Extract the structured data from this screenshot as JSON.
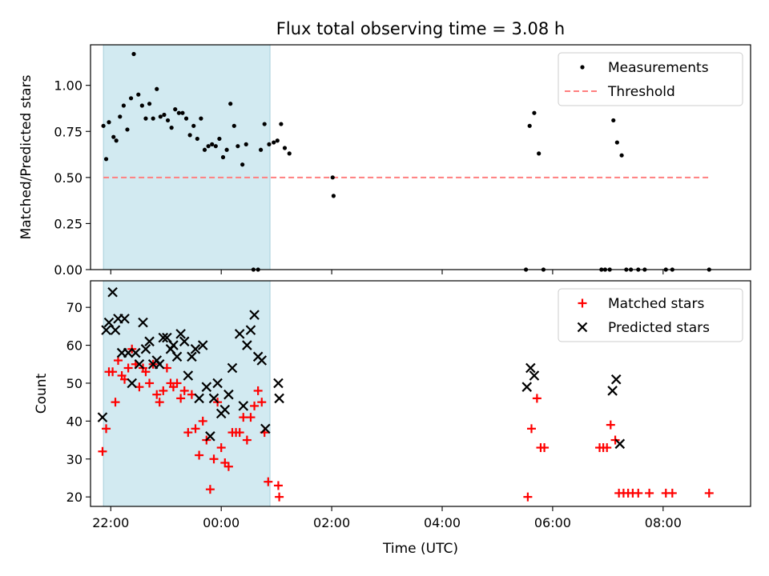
{
  "title": "Flux total observing time = 3.08 h",
  "colors": {
    "shade": "#add8e6",
    "measurement": "#000000",
    "threshold": "#ff7f7f",
    "matched": "#ff0000",
    "predicted": "#000000"
  },
  "chart_data": [
    {
      "type": "scatter",
      "panel": "top",
      "ylabel": "Matched/Predicted stars",
      "ylim": [
        0,
        1.22
      ],
      "yticks": [
        "0.00",
        "0.25",
        "0.50",
        "0.75",
        "1.00"
      ],
      "xlim": [
        "21:38",
        "09:35"
      ],
      "shaded_span": [
        "21:52",
        "00:53"
      ],
      "legend": {
        "position": "top-right",
        "entries": [
          "Measurements",
          "Threshold"
        ]
      },
      "series": [
        {
          "name": "Measurements",
          "marker": "dot",
          "points": [
            [
              "21:52",
              0.78
            ],
            [
              "21:55",
              0.6
            ],
            [
              "21:58",
              0.8
            ],
            [
              "22:03",
              0.72
            ],
            [
              "22:06",
              0.7
            ],
            [
              "22:10",
              0.83
            ],
            [
              "22:14",
              0.89
            ],
            [
              "22:18",
              0.76
            ],
            [
              "22:22",
              0.93
            ],
            [
              "22:25",
              1.17
            ],
            [
              "22:30",
              0.95
            ],
            [
              "22:34",
              0.89
            ],
            [
              "22:38",
              0.82
            ],
            [
              "22:42",
              0.9
            ],
            [
              "22:46",
              0.82
            ],
            [
              "22:50",
              0.98
            ],
            [
              "22:54",
              0.83
            ],
            [
              "22:58",
              0.84
            ],
            [
              "23:02",
              0.81
            ],
            [
              "23:06",
              0.77
            ],
            [
              "23:10",
              0.87
            ],
            [
              "23:14",
              0.85
            ],
            [
              "23:18",
              0.85
            ],
            [
              "23:22",
              0.82
            ],
            [
              "23:26",
              0.73
            ],
            [
              "23:30",
              0.78
            ],
            [
              "23:34",
              0.71
            ],
            [
              "23:38",
              0.82
            ],
            [
              "23:42",
              0.65
            ],
            [
              "23:46",
              0.67
            ],
            [
              "23:50",
              0.68
            ],
            [
              "23:54",
              0.67
            ],
            [
              "23:58",
              0.71
            ],
            [
              "00:02",
              0.61
            ],
            [
              "00:06",
              0.65
            ],
            [
              "00:10",
              0.9
            ],
            [
              "00:14",
              0.78
            ],
            [
              "00:18",
              0.67
            ],
            [
              "00:23",
              0.57
            ],
            [
              "00:27",
              0.68
            ],
            [
              "00:35",
              0.0
            ],
            [
              "00:40",
              0.0
            ],
            [
              "00:43",
              0.65
            ],
            [
              "00:47",
              0.79
            ],
            [
              "00:52",
              0.68
            ],
            [
              "00:57",
              0.69
            ],
            [
              "01:01",
              0.7
            ],
            [
              "01:05",
              0.79
            ],
            [
              "01:09",
              0.66
            ],
            [
              "01:14",
              0.63
            ],
            [
              "02:01",
              0.5
            ],
            [
              "02:02",
              0.4
            ],
            [
              "05:31",
              0.0
            ],
            [
              "05:35",
              0.78
            ],
            [
              "05:40",
              0.85
            ],
            [
              "05:45",
              0.63
            ],
            [
              "05:50",
              0.0
            ],
            [
              "06:53",
              0.0
            ],
            [
              "06:57",
              0.0
            ],
            [
              "07:02",
              0.0
            ],
            [
              "07:06",
              0.81
            ],
            [
              "07:10",
              0.69
            ],
            [
              "07:15",
              0.62
            ],
            [
              "07:20",
              0.0
            ],
            [
              "07:25",
              0.0
            ],
            [
              "07:33",
              0.0
            ],
            [
              "07:40",
              0.0
            ],
            [
              "08:03",
              0.0
            ],
            [
              "08:10",
              0.0
            ],
            [
              "08:50",
              0.0
            ]
          ]
        },
        {
          "name": "Threshold",
          "marker": "dashed-line",
          "points": [
            [
              "21:52",
              0.5
            ],
            [
              "08:50",
              0.5
            ]
          ]
        }
      ]
    },
    {
      "type": "scatter",
      "panel": "bottom",
      "ylabel": "Count",
      "xlabel": "Time (UTC)",
      "ylim": [
        17.5,
        77
      ],
      "yticks": [
        "20",
        "30",
        "40",
        "50",
        "60",
        "70"
      ],
      "xlim": [
        "21:38",
        "09:35"
      ],
      "xticks": [
        "22:00",
        "00:00",
        "02:00",
        "04:00",
        "06:00",
        "08:00"
      ],
      "shaded_span": [
        "21:52",
        "00:53"
      ],
      "legend": {
        "position": "top-right",
        "entries": [
          "Matched stars",
          "Predicted stars"
        ]
      },
      "series": [
        {
          "name": "Matched stars",
          "marker": "plus",
          "points": [
            [
              "21:51",
              32
            ],
            [
              "21:55",
              38
            ],
            [
              "21:58",
              53
            ],
            [
              "22:02",
              53
            ],
            [
              "22:05",
              45
            ],
            [
              "22:08",
              56
            ],
            [
              "22:12",
              52
            ],
            [
              "22:15",
              51
            ],
            [
              "22:19",
              54
            ],
            [
              "22:23",
              59
            ],
            [
              "22:27",
              55
            ],
            [
              "22:31",
              49
            ],
            [
              "22:35",
              54
            ],
            [
              "22:38",
              53
            ],
            [
              "22:42",
              50
            ],
            [
              "22:46",
              55
            ],
            [
              "22:50",
              47
            ],
            [
              "22:53",
              45
            ],
            [
              "22:57",
              48
            ],
            [
              "23:01",
              54
            ],
            [
              "23:05",
              50
            ],
            [
              "23:08",
              49
            ],
            [
              "23:12",
              50
            ],
            [
              "23:16",
              46
            ],
            [
              "23:20",
              48
            ],
            [
              "23:24",
              37
            ],
            [
              "23:28",
              47
            ],
            [
              "23:32",
              38
            ],
            [
              "23:36",
              31
            ],
            [
              "23:40",
              40
            ],
            [
              "23:44",
              35
            ],
            [
              "23:48",
              22
            ],
            [
              "23:52",
              30
            ],
            [
              "23:56",
              45
            ],
            [
              "00:00",
              33
            ],
            [
              "00:04",
              29
            ],
            [
              "00:08",
              28
            ],
            [
              "00:12",
              37
            ],
            [
              "00:16",
              37
            ],
            [
              "00:20",
              37
            ],
            [
              "00:24",
              41
            ],
            [
              "00:28",
              35
            ],
            [
              "00:32",
              41
            ],
            [
              "00:36",
              44
            ],
            [
              "00:40",
              48
            ],
            [
              "00:44",
              45
            ],
            [
              "00:47",
              37
            ],
            [
              "00:51",
              24
            ],
            [
              "01:02",
              23
            ],
            [
              "01:03",
              20
            ],
            [
              "05:33",
              20
            ],
            [
              "05:37",
              38
            ],
            [
              "05:43",
              46
            ],
            [
              "05:47",
              33
            ],
            [
              "05:51",
              33
            ],
            [
              "06:51",
              33
            ],
            [
              "06:55",
              33
            ],
            [
              "06:59",
              33
            ],
            [
              "07:03",
              39
            ],
            [
              "07:08",
              35
            ],
            [
              "07:12",
              21
            ],
            [
              "07:17",
              21
            ],
            [
              "07:22",
              21
            ],
            [
              "07:27",
              21
            ],
            [
              "07:33",
              21
            ],
            [
              "07:45",
              21
            ],
            [
              "08:03",
              21
            ],
            [
              "08:10",
              21
            ],
            [
              "08:50",
              21
            ]
          ]
        },
        {
          "name": "Predicted stars",
          "marker": "x",
          "points": [
            [
              "21:51",
              41
            ],
            [
              "21:55",
              64
            ],
            [
              "21:58",
              66
            ],
            [
              "22:02",
              74
            ],
            [
              "22:05",
              64
            ],
            [
              "22:08",
              67
            ],
            [
              "22:12",
              58
            ],
            [
              "22:15",
              67
            ],
            [
              "22:19",
              58
            ],
            [
              "22:23",
              50
            ],
            [
              "22:27",
              58
            ],
            [
              "22:31",
              55
            ],
            [
              "22:35",
              66
            ],
            [
              "22:38",
              59
            ],
            [
              "22:42",
              61
            ],
            [
              "22:46",
              55
            ],
            [
              "22:50",
              56
            ],
            [
              "22:53",
              55
            ],
            [
              "22:57",
              62
            ],
            [
              "23:01",
              62
            ],
            [
              "23:05",
              59
            ],
            [
              "23:08",
              60
            ],
            [
              "23:12",
              57
            ],
            [
              "23:16",
              63
            ],
            [
              "23:20",
              61
            ],
            [
              "23:24",
              52
            ],
            [
              "23:28",
              57
            ],
            [
              "23:32",
              59
            ],
            [
              "23:36",
              46
            ],
            [
              "23:40",
              60
            ],
            [
              "23:44",
              49
            ],
            [
              "23:48",
              36
            ],
            [
              "23:52",
              46
            ],
            [
              "23:56",
              50
            ],
            [
              "00:00",
              42
            ],
            [
              "00:04",
              43
            ],
            [
              "00:08",
              47
            ],
            [
              "00:12",
              54
            ],
            [
              "00:20",
              63
            ],
            [
              "00:24",
              44
            ],
            [
              "00:28",
              60
            ],
            [
              "00:32",
              64
            ],
            [
              "00:36",
              68
            ],
            [
              "00:40",
              57
            ],
            [
              "00:44",
              56
            ],
            [
              "00:48",
              38
            ],
            [
              "01:02",
              50
            ],
            [
              "01:03",
              46
            ],
            [
              "05:32",
              49
            ],
            [
              "05:36",
              54
            ],
            [
              "05:40",
              52
            ],
            [
              "07:05",
              48
            ],
            [
              "07:09",
              51
            ],
            [
              "07:13",
              34
            ]
          ]
        }
      ]
    }
  ]
}
